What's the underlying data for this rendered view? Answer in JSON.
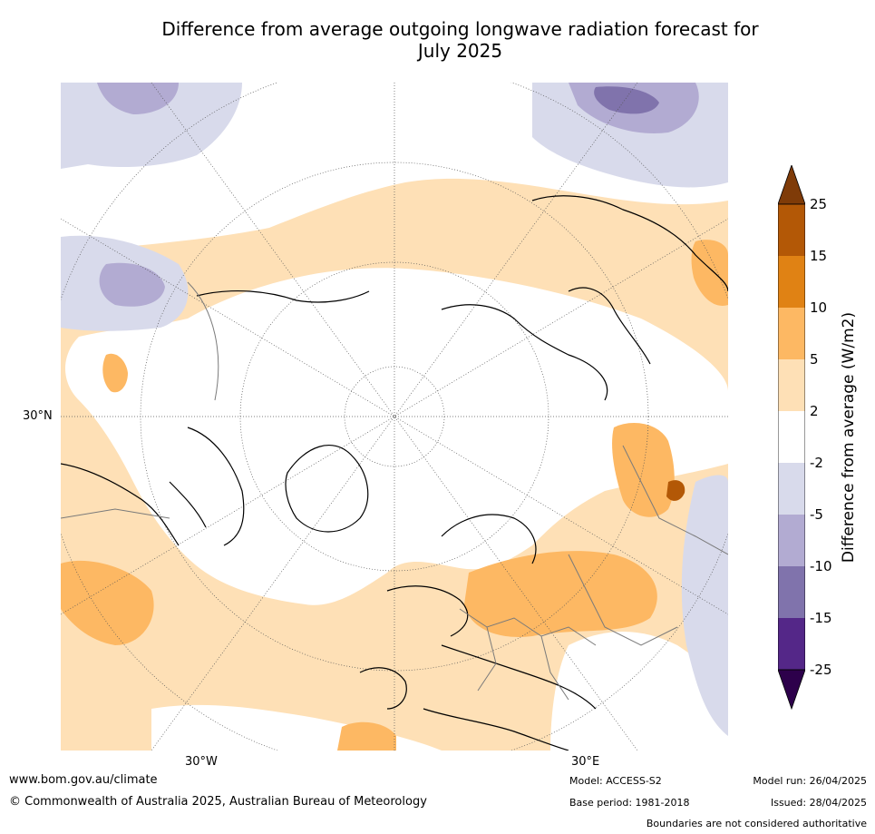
{
  "title_line1": "Difference from average outgoing longwave radiation forecast for",
  "title_line2": "July 2025",
  "map": {
    "lat_label": "30°N",
    "lon_labels": [
      "30°W",
      "30°E"
    ],
    "colorbar_title": "Difference from average (W/m2)",
    "colorbar_ticks": [
      "25",
      "15",
      "10",
      "5",
      "2",
      "-2",
      "-5",
      "-10",
      "-15",
      "-25"
    ],
    "colorbar_colors": {
      "gt25": "#7f3b08",
      "15_25": "#b35806",
      "10_15": "#e08214",
      "5_10": "#fdb863",
      "2_5": "#fee0b6",
      "neutral": "#ffffff",
      "m5_m2": "#d8daeb",
      "m10_m5": "#b2abd2",
      "m15_m10": "#8073ac",
      "m25_m15": "#542788",
      "lt_m25": "#2d004b"
    }
  },
  "footer": {
    "website": "www.bom.gov.au/climate",
    "copyright": "© Commonwealth of Australia 2025, Australian Bureau of Meteorology",
    "model": "Model: ACCESS-S2",
    "base_period": "Base period: 1981-2018",
    "model_run": "Model run: 26/04/2025",
    "issued": "Issued: 28/04/2025",
    "disclaimer": "Boundaries are not considered authoritative"
  }
}
